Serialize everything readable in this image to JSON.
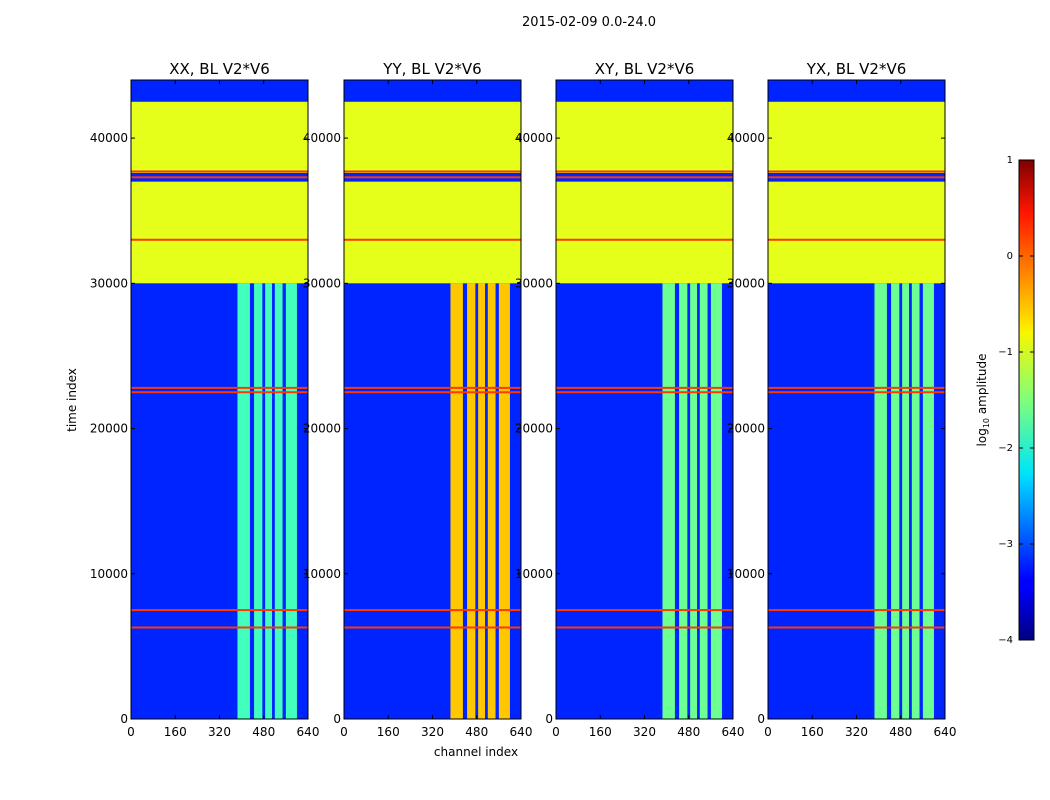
{
  "figure_title": "2015-02-09 0.0-24.0",
  "chart_data": {
    "type": "heatmap",
    "xlabel": "channel index",
    "ylabel": "time index",
    "xlim": [
      0,
      640
    ],
    "ylim": [
      0,
      44000
    ],
    "xticks": [
      "0",
      "160",
      "320",
      "480",
      "640"
    ],
    "yticks": [
      "0",
      "10000",
      "20000",
      "30000",
      "40000"
    ],
    "colorbar": {
      "label": "log10 amplitude",
      "range": [
        -4,
        1
      ],
      "ticks": [
        "1",
        "0",
        "−1",
        "−2",
        "−3",
        "−4"
      ],
      "colormap": "jet"
    },
    "panels": [
      {
        "title": "XX, BL V2*V6",
        "polarization": "XX",
        "rfi_intensity": -1.8
      },
      {
        "title": "YY, BL V2*V6",
        "polarization": "YY",
        "rfi_intensity": -0.6
      },
      {
        "title": "XY, BL V2*V6",
        "polarization": "XY",
        "rfi_intensity": -1.6
      },
      {
        "title": "YX, BL V2*V6",
        "polarization": "YX",
        "rfi_intensity": -1.6
      }
    ],
    "background_level": -3.2,
    "flagged_level": -1.0,
    "flagged_time_ranges": [
      [
        30000,
        37000
      ],
      [
        37600,
        42500
      ]
    ],
    "hot_time_rows": [
      33000,
      37300,
      37700,
      22800,
      22500,
      7500,
      6300
    ],
    "rfi_channel_bands": [
      [
        385,
        430
      ],
      [
        445,
        475
      ],
      [
        485,
        510
      ],
      [
        520,
        548
      ],
      [
        560,
        600
      ]
    ],
    "rfi_time_range": [
      0,
      30000
    ]
  }
}
